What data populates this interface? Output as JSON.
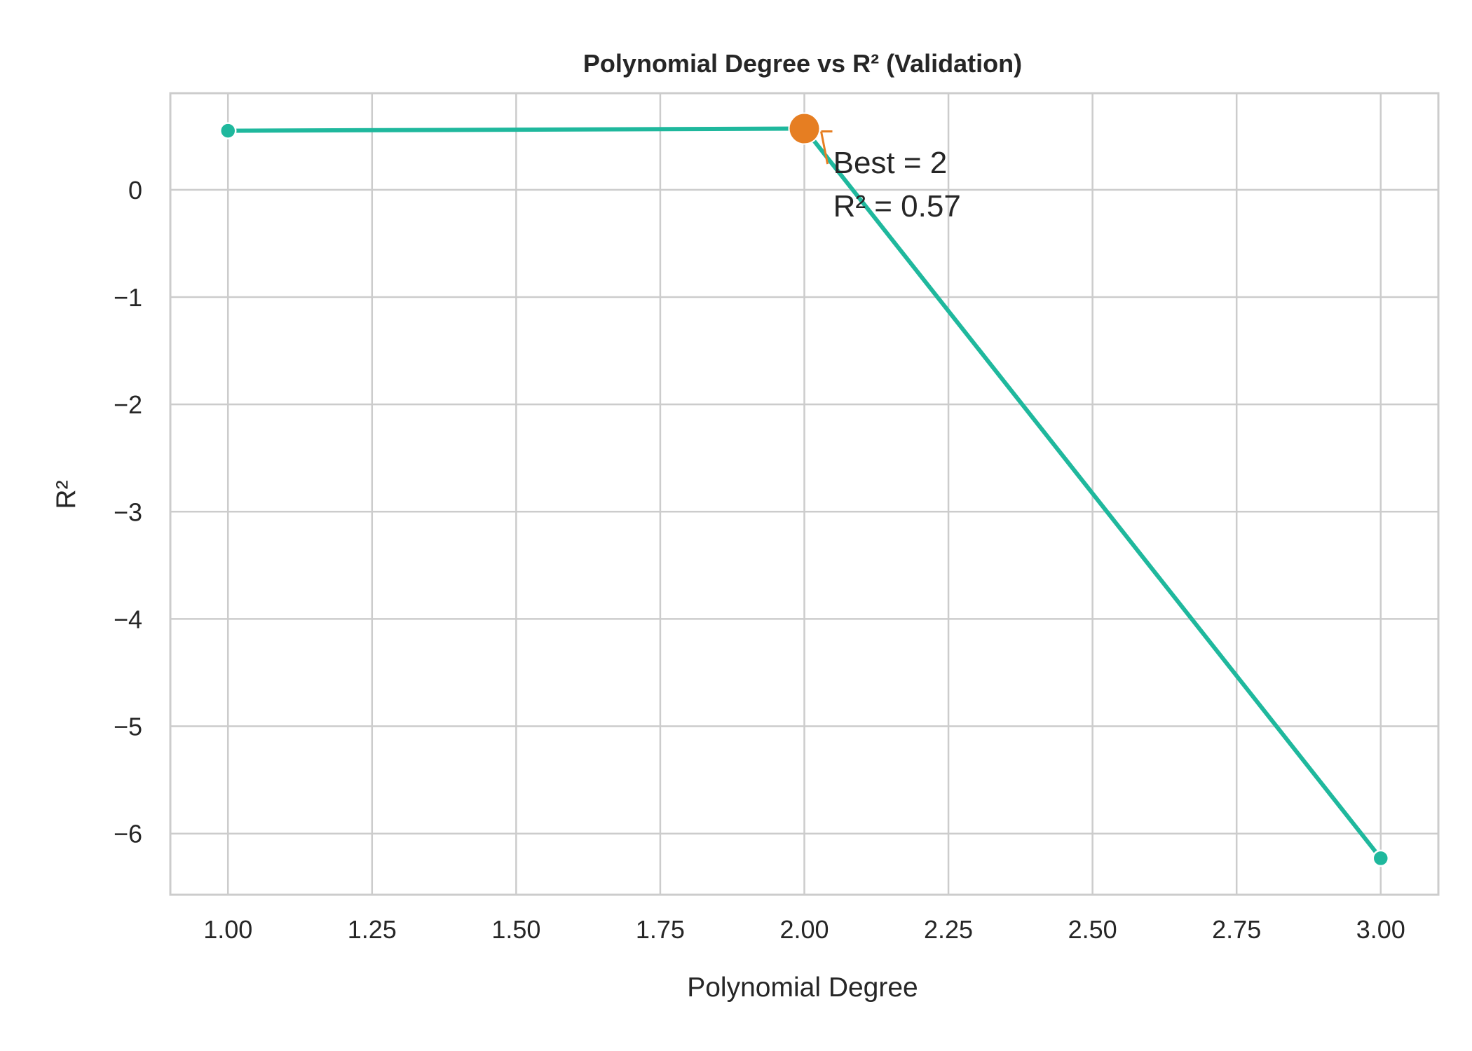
{
  "colors": {
    "line": "#1fb89d",
    "best": "#e67e22",
    "grid": "#cccccc",
    "frame": "#cccccc",
    "text": "#262626",
    "background": "#ffffff"
  },
  "chart_data": {
    "type": "line",
    "title": "Polynomial Degree vs R² (Validation)",
    "xlabel": "Polynomial Degree",
    "ylabel": "R²",
    "xlim": [
      0.9,
      3.1
    ],
    "ylim": [
      -6.57,
      0.9
    ],
    "grid": true,
    "legend": "none",
    "x_ticks": [
      1.0,
      1.25,
      1.5,
      1.75,
      2.0,
      2.25,
      2.5,
      2.75,
      3.0
    ],
    "x_tick_labels": [
      "1.00",
      "1.25",
      "1.50",
      "1.75",
      "2.00",
      "2.25",
      "2.50",
      "2.75",
      "3.00"
    ],
    "y_ticks": [
      0,
      -1,
      -2,
      -3,
      -4,
      -5,
      -6
    ],
    "y_tick_labels": [
      "0",
      "−1",
      "−2",
      "−3",
      "−4",
      "−5",
      "−6"
    ],
    "series": [
      {
        "x": [
          1,
          2,
          3
        ],
        "values": [
          0.55,
          0.57,
          -6.23
        ]
      }
    ],
    "best_point": {
      "x": 2,
      "y": 0.57
    },
    "annotation": {
      "lines": [
        "Best = 2",
        "R² = 0.57"
      ],
      "x": 2.05,
      "y": 0.22
    }
  }
}
